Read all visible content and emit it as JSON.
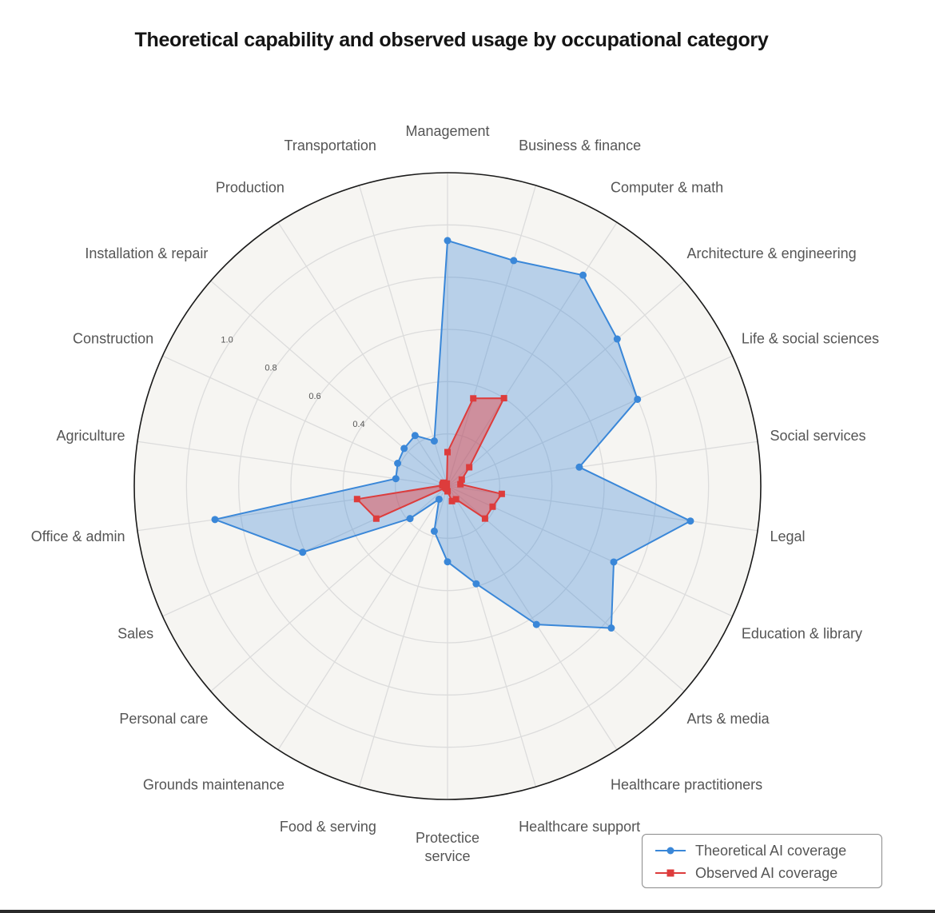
{
  "title": "Theoretical capability and observed usage by occupational category",
  "chart_data": {
    "type": "radar",
    "title": "Theoretical capability and observed usage by occupational category",
    "categories": [
      "Management",
      "Business & finance",
      "Computer & math",
      "Architecture & engineering",
      "Life & social sciences",
      "Social services",
      "Legal",
      "Education & library",
      "Arts & media",
      "Healthcare practitioners",
      "Healthcare support",
      "Protectice service",
      "Food & serving",
      "Grounds maintenance",
      "Personal care",
      "Sales",
      "Office & admin",
      "Agriculture",
      "Construction",
      "Installation & repair",
      "Production",
      "Transportation"
    ],
    "radial_ticks": [
      "0.4",
      "0.6",
      "0.8",
      "1.0"
    ],
    "rlim": [
      0,
      1.2
    ],
    "series": [
      {
        "name": "Theoretical AI coverage",
        "color": "#3a87d8",
        "marker": "circle",
        "values": [
          0.94,
          0.9,
          0.96,
          0.86,
          0.8,
          0.51,
          0.94,
          0.7,
          0.83,
          0.63,
          0.39,
          0.29,
          0.18,
          0.06,
          0.19,
          0.61,
          0.9,
          0.2,
          0.21,
          0.22,
          0.23,
          0.18
        ]
      },
      {
        "name": "Observed AI coverage",
        "color": "#dd3c3c",
        "marker": "square",
        "values": [
          0.13,
          0.35,
          0.4,
          0.11,
          0.06,
          0.05,
          0.21,
          0.19,
          0.19,
          0.06,
          0.06,
          0.02,
          0.01,
          0.01,
          0.01,
          0.3,
          0.35,
          0.02,
          0.02,
          0.02,
          0.01,
          0.01
        ]
      }
    ],
    "grid": true,
    "legend": "bottom-right"
  },
  "legend": {
    "items": [
      {
        "label": "Theoretical AI coverage",
        "color": "#3a87d8",
        "marker": "circle"
      },
      {
        "label": "Observed AI coverage",
        "color": "#dd3c3c",
        "marker": "square"
      }
    ]
  }
}
